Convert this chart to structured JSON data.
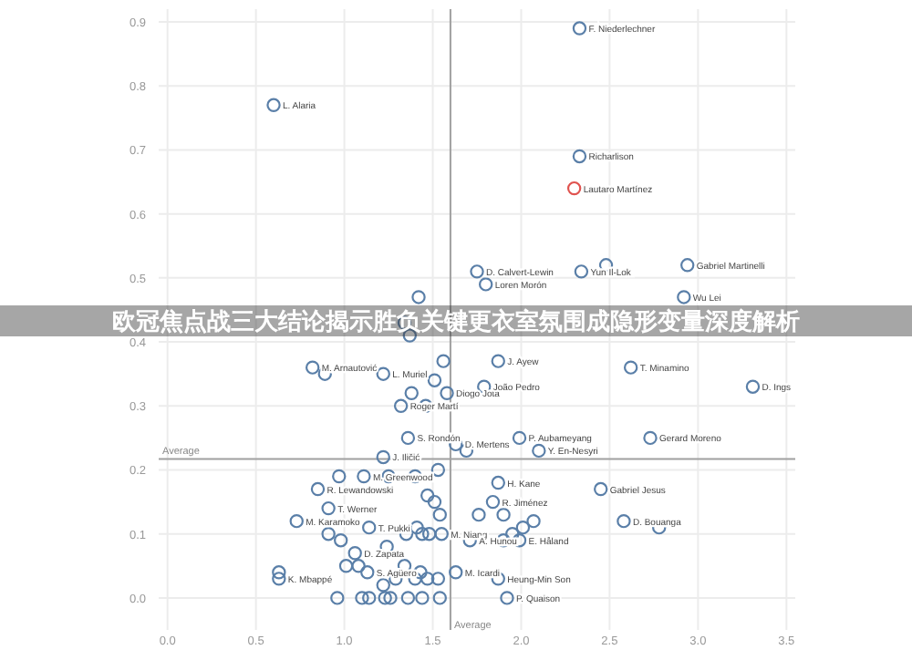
{
  "chart_data": {
    "type": "scatter",
    "title": "欧冠焦点战三大结论揭示胜负关键更衣室氛围成隐形变量深度解析",
    "xlim": [
      -0.05,
      3.55
    ],
    "ylim": [
      -0.05,
      0.92
    ],
    "xticks": [
      {
        "value": 0,
        "label": "0.0"
      },
      {
        "value": 0.5,
        "label": "0.5"
      },
      {
        "value": 1,
        "label": "1.0"
      },
      {
        "value": 1.5,
        "label": "1.5"
      },
      {
        "value": 2,
        "label": "2.0"
      },
      {
        "value": 2.5,
        "label": "2.5"
      },
      {
        "value": 3,
        "label": "3.0"
      },
      {
        "value": 3.5,
        "label": "3.5"
      }
    ],
    "yticks": [
      {
        "value": 0,
        "label": "0.0"
      },
      {
        "value": 0.1,
        "label": "0.1"
      },
      {
        "value": 0.2,
        "label": "0.2"
      },
      {
        "value": 0.3,
        "label": "0.3"
      },
      {
        "value": 0.4,
        "label": "0.4"
      },
      {
        "value": 0.5,
        "label": "0.5"
      },
      {
        "value": 0.6,
        "label": "0.6"
      },
      {
        "value": 0.7,
        "label": "0.7"
      },
      {
        "value": 0.8,
        "label": "0.8"
      },
      {
        "value": 0.9,
        "label": "0.9"
      }
    ],
    "grid": true,
    "marker": "circle",
    "series": [
      {
        "color": "#5a7fa8",
        "x": [
          0.6,
          2.33,
          2.33,
          1.75,
          1.8,
          2.34,
          2.94,
          2.92,
          2.48,
          0.82,
          1.22,
          1.32,
          1.58,
          1.36,
          1.87,
          1.79,
          2.62,
          3.31,
          1.99,
          2.73,
          2.1,
          1.63,
          1.22,
          0.85,
          1.11,
          0.91,
          0.73,
          1.14,
          1.06,
          1.55,
          1.13,
          1.63,
          0.63,
          0.63,
          1.87,
          1.84,
          2.45,
          2.58,
          1.71,
          1.99,
          1.87,
          1.92,
          1.42,
          1.34,
          1.37,
          0.89,
          1.56,
          1.51,
          1.38,
          1.46,
          0.97,
          1.25,
          1.4,
          1.53,
          1.47,
          1.51,
          1.54,
          1.41,
          1.44,
          1.35,
          1.48,
          0.91,
          0.98,
          1.01,
          1.08,
          1.24,
          1.34,
          1.4,
          1.43,
          1.22,
          1.29,
          1.47,
          1.53,
          0.96,
          1.1,
          1.14,
          1.23,
          1.26,
          1.36,
          1.44,
          1.54,
          1.76,
          1.9,
          1.95,
          2.01,
          2.07,
          1.9,
          1.69,
          2.78
        ],
        "values": [
          0.77,
          0.89,
          0.69,
          0.51,
          0.49,
          0.51,
          0.52,
          0.47,
          0.52,
          0.36,
          0.35,
          0.3,
          0.32,
          0.25,
          0.37,
          0.33,
          0.36,
          0.33,
          0.25,
          0.25,
          0.23,
          0.24,
          0.22,
          0.17,
          0.19,
          0.14,
          0.12,
          0.11,
          0.07,
          0.1,
          0.04,
          0.04,
          0.04,
          0.03,
          0.18,
          0.15,
          0.17,
          0.12,
          0.09,
          0.09,
          0.03,
          0.0,
          0.47,
          0.43,
          0.41,
          0.35,
          0.37,
          0.34,
          0.32,
          0.3,
          0.19,
          0.19,
          0.19,
          0.2,
          0.16,
          0.15,
          0.13,
          0.11,
          0.1,
          0.1,
          0.1,
          0.1,
          0.09,
          0.05,
          0.05,
          0.08,
          0.05,
          0.03,
          0.04,
          0.02,
          0.03,
          0.03,
          0.03,
          0.0,
          0.0,
          0.0,
          0.0,
          0.0,
          0.0,
          0.0,
          0.0,
          0.13,
          0.09,
          0.1,
          0.11,
          0.12,
          0.13,
          0.23,
          0.11
        ]
      },
      {
        "color": "#e0534f",
        "x": [
          2.3
        ],
        "values": [
          0.64
        ]
      }
    ],
    "ref_lines": [
      {
        "axis": "y",
        "value": 0.217,
        "label": "Average",
        "color": "#a0a0a0"
      },
      {
        "axis": "x",
        "value": 1.6,
        "label": "Average",
        "color": "#a0a0a0"
      }
    ],
    "annotations": [
      {
        "text": "L. Alaria",
        "x": 0.6,
        "y": 0.77
      },
      {
        "text": "F. Niederlechner",
        "x": 2.33,
        "y": 0.89
      },
      {
        "text": "Richarlison",
        "x": 2.33,
        "y": 0.69
      },
      {
        "text": "Lautaro Martínez",
        "x": 2.3,
        "y": 0.64
      },
      {
        "text": "D. Calvert-Lewin",
        "x": 1.75,
        "y": 0.51
      },
      {
        "text": "Loren Morón",
        "x": 1.8,
        "y": 0.49
      },
      {
        "text": "Yun Il-Lok",
        "x": 2.34,
        "y": 0.51
      },
      {
        "text": "Gabriel Martinelli",
        "x": 2.94,
        "y": 0.52
      },
      {
        "text": "Wu Lei",
        "x": 2.92,
        "y": 0.47
      },
      {
        "text": "M. Arnautović",
        "x": 0.82,
        "y": 0.36
      },
      {
        "text": "L. Muriel",
        "x": 1.22,
        "y": 0.35
      },
      {
        "text": "Roger Martí",
        "x": 1.32,
        "y": 0.3
      },
      {
        "text": "Diogo Jota",
        "x": 1.58,
        "y": 0.32
      },
      {
        "text": "S. Rondón",
        "x": 1.36,
        "y": 0.25
      },
      {
        "text": "J. Ayew",
        "x": 1.87,
        "y": 0.37
      },
      {
        "text": "João Pedro",
        "x": 1.79,
        "y": 0.33
      },
      {
        "text": "T. Minamino",
        "x": 2.62,
        "y": 0.36
      },
      {
        "text": "D. Ings",
        "x": 3.31,
        "y": 0.33
      },
      {
        "text": "P. Aubameyang",
        "x": 1.99,
        "y": 0.25
      },
      {
        "text": "Gerard Moreno",
        "x": 2.73,
        "y": 0.25
      },
      {
        "text": "Y. En-Nesyri",
        "x": 2.1,
        "y": 0.23
      },
      {
        "text": "D. Mertens",
        "x": 1.63,
        "y": 0.24
      },
      {
        "text": "J. Iličić",
        "x": 1.22,
        "y": 0.22
      },
      {
        "text": "R. Lewandowski",
        "x": 0.85,
        "y": 0.17
      },
      {
        "text": "M. Greenwood",
        "x": 1.11,
        "y": 0.19
      },
      {
        "text": "T. Werner",
        "x": 0.91,
        "y": 0.14
      },
      {
        "text": "M. Karamoko",
        "x": 0.73,
        "y": 0.12
      },
      {
        "text": "T. Pukki",
        "x": 1.14,
        "y": 0.11
      },
      {
        "text": "D. Zapata",
        "x": 1.06,
        "y": 0.07
      },
      {
        "text": "M. Niang",
        "x": 1.55,
        "y": 0.1
      },
      {
        "text": "S. Agüero",
        "x": 1.13,
        "y": 0.04
      },
      {
        "text": "M. Icardi",
        "x": 1.63,
        "y": 0.04
      },
      {
        "text": "K. Mbappé",
        "x": 0.63,
        "y": 0.03
      },
      {
        "text": "H. Kane",
        "x": 1.87,
        "y": 0.18
      },
      {
        "text": "R. Jiménez",
        "x": 1.84,
        "y": 0.15
      },
      {
        "text": "Gabriel Jesus",
        "x": 2.45,
        "y": 0.17
      },
      {
        "text": "D. Bouanga",
        "x": 2.58,
        "y": 0.12
      },
      {
        "text": "A. Hunou",
        "x": 1.71,
        "y": 0.09
      },
      {
        "text": "E. Håland",
        "x": 1.99,
        "y": 0.09
      },
      {
        "text": "Heung-Min Son",
        "x": 1.87,
        "y": 0.03
      },
      {
        "text": "P. Quaison",
        "x": 1.92,
        "y": 0.0
      }
    ]
  }
}
